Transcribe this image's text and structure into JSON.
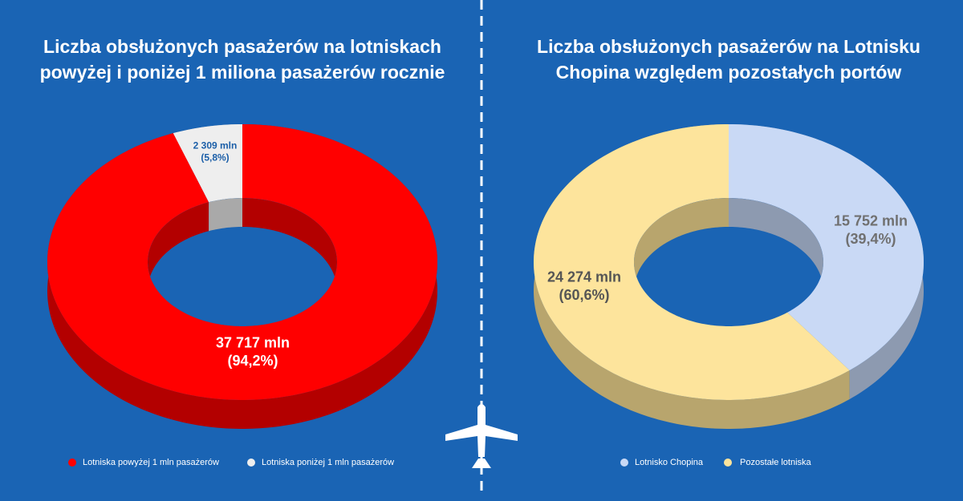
{
  "chart_data": [
    {
      "type": "donut",
      "title": [
        "Liczba obsłużonych pasażerów na lotniskach",
        "powyżej i poniżej 1 miliona pasażerów rocznie"
      ],
      "categories": [
        "Lotniska powyżej 1 mln pasażerów",
        "Lotniska poniżej 1 mln pasażerów"
      ],
      "values": [
        37717,
        2309
      ],
      "value_labels": [
        "37 717 mln",
        "2 309 mln"
      ],
      "percents": [
        94.2,
        5.8
      ],
      "percent_labels": [
        "(94,2%)",
        "(5,8%)"
      ],
      "colors": [
        "#ff0000",
        "#eeeeee"
      ],
      "wall_colors": [
        "#b30000",
        "#a9a9a9"
      ],
      "label_colors": [
        "#ffffff",
        "#1c5fa8"
      ]
    },
    {
      "type": "donut",
      "title": [
        "Liczba obsłużonych pasażerów na Lotnisku",
        "Chopina względem pozostałych portów"
      ],
      "categories": [
        "Lotnisko Chopina",
        "Pozostałe lotniska"
      ],
      "values": [
        15752,
        24274
      ],
      "value_labels": [
        "15 752 mln",
        "24 274 mln"
      ],
      "percents": [
        39.4,
        60.6
      ],
      "percent_labels": [
        "(39,4%)",
        "(60,6%)"
      ],
      "colors": [
        "#c9d9f5",
        "#fde49c"
      ],
      "wall_colors": [
        "#8d9ab0",
        "#b8a56d"
      ],
      "label_colors": [
        "#707070",
        "#555555"
      ]
    }
  ]
}
